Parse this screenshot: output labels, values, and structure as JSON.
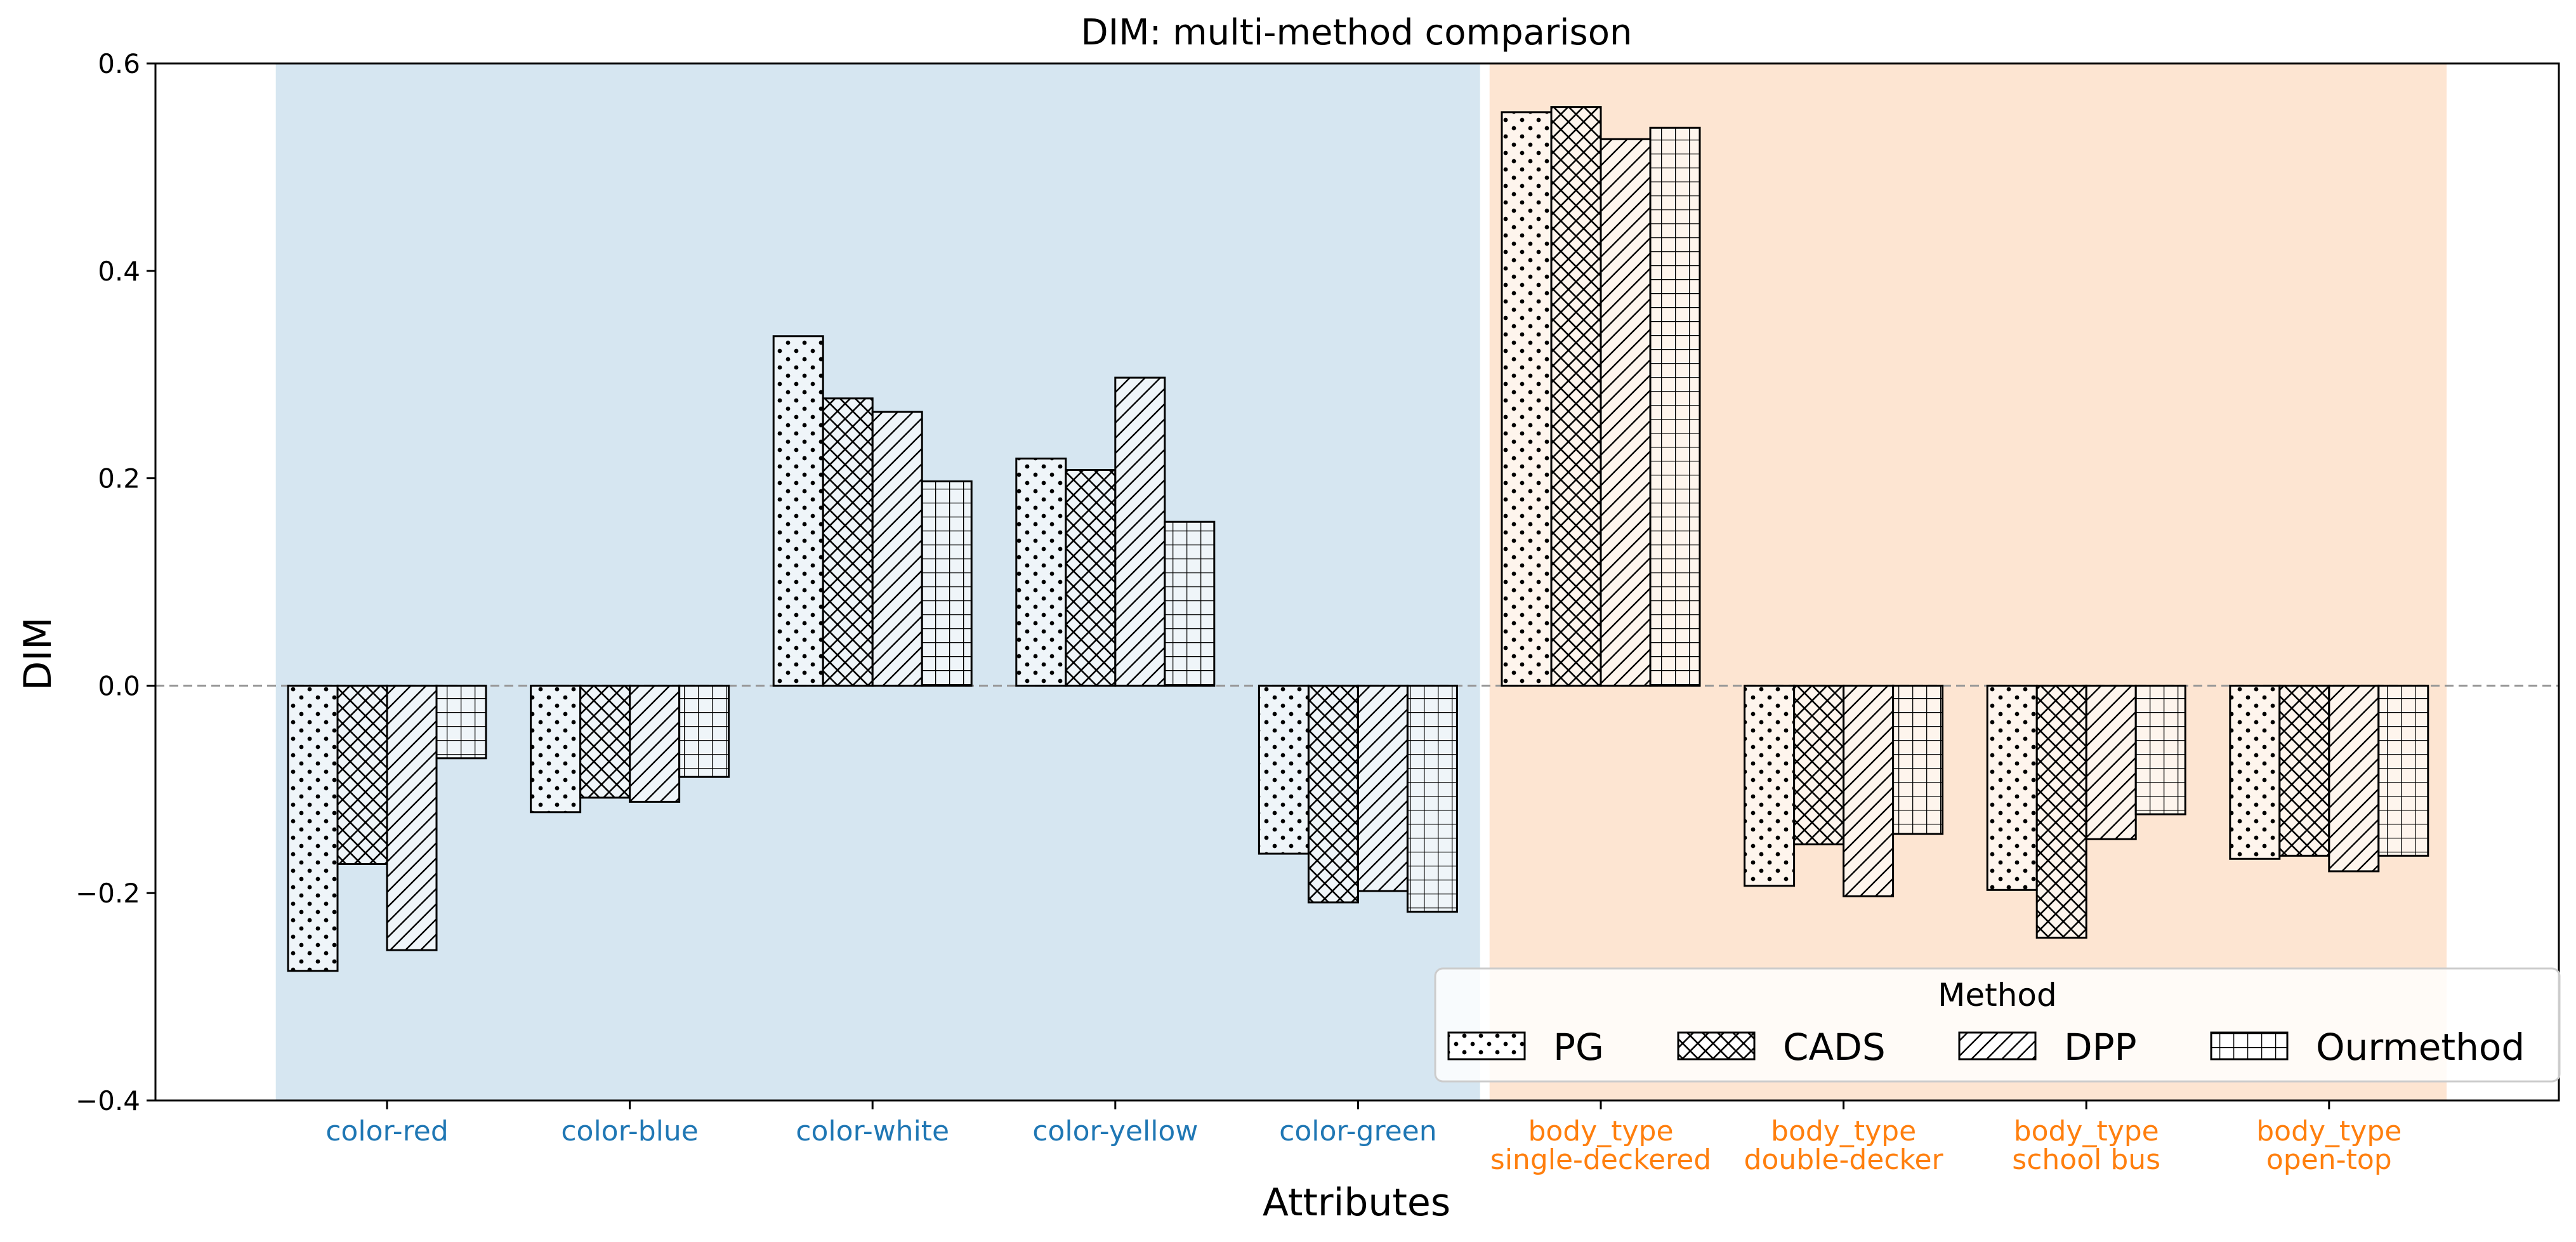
{
  "chart_data": {
    "type": "bar",
    "title": "DIM: multi-method comparison",
    "xlabel": "Attributes",
    "ylabel": "DIM",
    "ylim": [
      -0.4,
      0.6
    ],
    "yticks": [
      "-0.4",
      "-0.2",
      "0.0",
      "0.2",
      "0.4",
      "0.6"
    ],
    "categories": [
      {
        "lines": [
          "color-red"
        ],
        "group": "color"
      },
      {
        "lines": [
          "color-blue"
        ],
        "group": "color"
      },
      {
        "lines": [
          "color-white"
        ],
        "group": "color"
      },
      {
        "lines": [
          "color-yellow"
        ],
        "group": "color"
      },
      {
        "lines": [
          "color-green"
        ],
        "group": "color"
      },
      {
        "lines": [
          "body_type",
          "single-deckered"
        ],
        "group": "body_type"
      },
      {
        "lines": [
          "body_type",
          "double-decker"
        ],
        "group": "body_type"
      },
      {
        "lines": [
          "body_type",
          "school bus"
        ],
        "group": "body_type"
      },
      {
        "lines": [
          "body_type",
          "open-top"
        ],
        "group": "body_type"
      }
    ],
    "groups": {
      "color": {
        "band_color": "#d6e6f1",
        "label_color": "#1f77b4"
      },
      "body_type": {
        "band_color": "#fde5d2",
        "label_color": "#ff7f0e"
      }
    },
    "series": [
      {
        "name": "PG",
        "hatch": "dots",
        "values": [
          -0.275,
          -0.122,
          0.337,
          0.219,
          -0.162,
          0.553,
          -0.193,
          -0.197,
          -0.167
        ]
      },
      {
        "name": "CADS",
        "hatch": "crosshatch",
        "values": [
          -0.172,
          -0.108,
          0.277,
          0.208,
          -0.209,
          0.558,
          -0.153,
          -0.243,
          -0.164
        ]
      },
      {
        "name": "DPP",
        "hatch": "diagonal",
        "values": [
          -0.255,
          -0.112,
          0.264,
          0.297,
          -0.198,
          0.527,
          -0.203,
          -0.148,
          -0.179
        ]
      },
      {
        "name": "Ourmethod",
        "hatch": "grid",
        "values": [
          -0.07,
          -0.088,
          0.197,
          0.158,
          -0.218,
          0.538,
          -0.143,
          -0.124,
          -0.164
        ]
      }
    ],
    "legend": {
      "title": "Method",
      "placement": "lower-right"
    },
    "zero_line": true
  }
}
